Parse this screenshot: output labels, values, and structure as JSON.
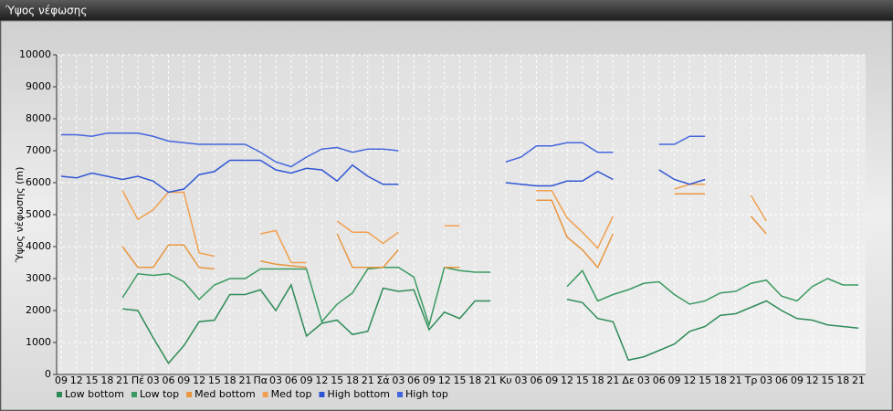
{
  "chart_data": {
    "type": "line",
    "title": "Ύψος νέφωσης",
    "y_label": "Ύψος νέφωσης (m)",
    "categories": [
      "09",
      "12",
      "15",
      "18",
      "21",
      "Πέ",
      "03",
      "06",
      "09",
      "12",
      "15",
      "18",
      "21",
      "Πα",
      "03",
      "06",
      "09",
      "12",
      "15",
      "18",
      "21",
      "Σά",
      "03",
      "06",
      "09",
      "12",
      "15",
      "18",
      "21",
      "Κυ",
      "03",
      "06",
      "09",
      "12",
      "15",
      "18",
      "21",
      "Δε",
      "03",
      "06",
      "09",
      "12",
      "15",
      "18",
      "21",
      "Τρ",
      "03",
      "06",
      "09",
      "12",
      "15",
      "18",
      "21"
    ],
    "ylim": [
      0,
      10000
    ],
    "yticks": [
      0,
      1000,
      2000,
      3000,
      4000,
      5000,
      6000,
      7000,
      8000,
      9000,
      10000
    ],
    "grid": true,
    "legend": "bottom",
    "series": [
      {
        "name": "Low bottom",
        "color": "#2e8b57",
        "values": [
          null,
          null,
          null,
          null,
          2050,
          2000,
          1150,
          350,
          900,
          1650,
          1700,
          2500,
          2500,
          2650,
          2000,
          2800,
          1200,
          1600,
          1700,
          1250,
          1350,
          2700,
          2600,
          2650,
          1400,
          1950,
          1750,
          2300,
          2300,
          null,
          null,
          null,
          null,
          2350,
          2250,
          1750,
          1650,
          450,
          550,
          750,
          950,
          1350,
          1500,
          1850,
          1900,
          2100,
          2300,
          2000,
          1750,
          1700,
          1550,
          1500,
          1450
        ]
      },
      {
        "name": "Low top",
        "color": "#3a9a62",
        "values": [
          null,
          null,
          null,
          null,
          2400,
          3150,
          3100,
          3150,
          2900,
          2350,
          2800,
          3000,
          3000,
          3300,
          3300,
          3300,
          3300,
          1650,
          2200,
          2550,
          3300,
          3350,
          3350,
          3050,
          1550,
          3350,
          3250,
          3200,
          3200,
          null,
          null,
          null,
          null,
          2750,
          3250,
          2300,
          2500,
          2650,
          2850,
          2900,
          2500,
          2200,
          2300,
          2550,
          2600,
          2850,
          2950,
          2450,
          2300,
          2750,
          3000,
          2800,
          2800
        ]
      },
      {
        "name": "Med bottom",
        "color": "#e8963f",
        "values": [
          null,
          null,
          null,
          null,
          4000,
          3350,
          3350,
          4050,
          4050,
          3350,
          3300,
          null,
          null,
          3550,
          3450,
          3400,
          3350,
          null,
          4400,
          3350,
          3350,
          3350,
          3900,
          null,
          null,
          3350,
          3350,
          null,
          null,
          null,
          null,
          5450,
          5450,
          4300,
          3900,
          3350,
          4400,
          null,
          null,
          null,
          5650,
          5650,
          5650,
          null,
          null,
          4950,
          4400,
          null,
          null,
          null,
          null,
          null,
          null
        ]
      },
      {
        "name": "Med top",
        "color": "#f0a050",
        "values": [
          null,
          null,
          null,
          null,
          5750,
          4850,
          5150,
          5700,
          5700,
          3800,
          3700,
          null,
          null,
          4400,
          4500,
          3500,
          3500,
          null,
          4800,
          4450,
          4450,
          4100,
          4450,
          null,
          null,
          4650,
          4650,
          null,
          null,
          null,
          null,
          5750,
          5750,
          4900,
          4450,
          3950,
          4950,
          null,
          null,
          null,
          5800,
          5950,
          5950,
          null,
          null,
          5600,
          4800,
          null,
          null,
          null,
          null,
          null,
          null
        ]
      },
      {
        "name": "High bottom",
        "color": "#2f55d4",
        "values": [
          6200,
          6150,
          6300,
          6200,
          6100,
          6200,
          6050,
          5700,
          5800,
          6250,
          6350,
          6700,
          6700,
          6700,
          6400,
          6300,
          6450,
          6400,
          6050,
          6550,
          6200,
          5950,
          5950,
          null,
          null,
          null,
          null,
          null,
          null,
          6000,
          5950,
          5900,
          5900,
          6050,
          6050,
          6350,
          6100,
          null,
          null,
          6400,
          6100,
          5950,
          6100,
          null,
          null,
          null,
          null,
          null,
          null,
          null,
          null,
          null,
          null
        ]
      },
      {
        "name": "High top",
        "color": "#4466dd",
        "values": [
          7500,
          7500,
          7450,
          7550,
          7550,
          7550,
          7450,
          7300,
          7250,
          7200,
          7200,
          7200,
          7200,
          6950,
          6650,
          6500,
          6800,
          7050,
          7100,
          6950,
          7050,
          7050,
          7000,
          null,
          null,
          null,
          null,
          null,
          null,
          6650,
          6800,
          7150,
          7150,
          7250,
          7250,
          6950,
          6950,
          null,
          null,
          7200,
          7200,
          7450,
          7450,
          null,
          null,
          null,
          null,
          null,
          null,
          null,
          null,
          null,
          null
        ]
      }
    ]
  }
}
